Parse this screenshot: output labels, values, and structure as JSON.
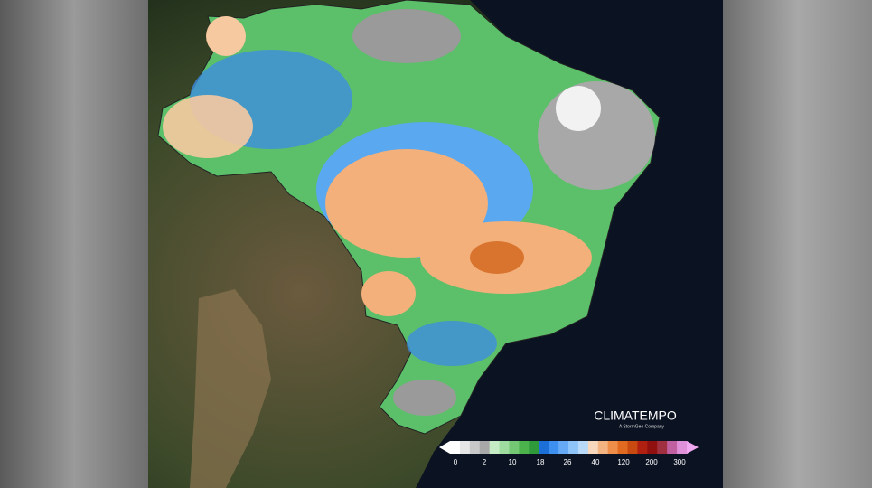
{
  "brand": {
    "name": "CLIMATEMPO",
    "tagline": "A StormGeo Company"
  },
  "legend": {
    "labels": [
      0,
      2,
      10,
      18,
      26,
      40,
      120,
      200,
      300
    ]
  }
}
